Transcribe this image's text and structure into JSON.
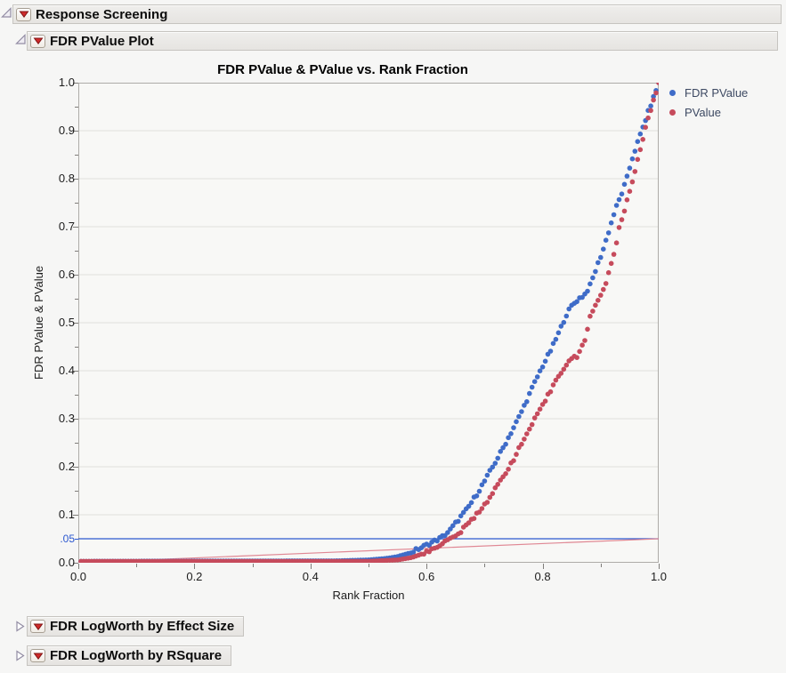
{
  "outline": {
    "root_panel": {
      "label": "Response Screening",
      "state": "open"
    },
    "plot_panel": {
      "label": "FDR PValue Plot",
      "state": "open"
    },
    "collapsed_panels": [
      {
        "label": "FDR LogWorth by Effect Size",
        "state": "closed"
      },
      {
        "label": "FDR LogWorth by RSquare",
        "state": "closed"
      }
    ]
  },
  "icons": {
    "disclosure_open": "open-outline-triangle",
    "disclosure_closed": "closed-outline-triangle",
    "red_triangle_menu": "red-triangle-menu"
  },
  "colors": {
    "plot_background": "#f8f8f6",
    "gridline": "#e0dfdc",
    "frame": "#aeaca8",
    "tick": "#7f7d7a",
    "blue_series": "#3f6cc8",
    "red_series": "#c64b5c",
    "blue_ref_line": "#2b57d0",
    "red_ref_line": "#e08894",
    "legend_text": "#3d4962"
  },
  "chart_data": {
    "type": "scatter",
    "title": "FDR PValue & PValue vs. Rank Fraction",
    "xlabel": "Rank Fraction",
    "ylabel": "FDR PValue & PValue",
    "xlim": [
      0,
      1
    ],
    "ylim": [
      0,
      1
    ],
    "grid": "horizontal-major-only",
    "x_axis": {
      "major_ticks": [
        0.0,
        0.2,
        0.4,
        0.6,
        0.8,
        1.0
      ],
      "major_tick_labels": [
        "0.0",
        "0.2",
        "0.4",
        "0.6",
        "0.8",
        "1.0"
      ],
      "minor_tick_step": 0.1
    },
    "y_axis": {
      "major_ticks": [
        0.0,
        0.1,
        0.2,
        0.3,
        0.4,
        0.5,
        0.6,
        0.7,
        0.8,
        0.9,
        1.0
      ],
      "major_tick_labels": [
        "0.0",
        "0.1",
        "0.2",
        "0.3",
        "0.4",
        "0.5",
        "0.6",
        "0.7",
        "0.8",
        "0.9",
        "1.0"
      ],
      "minor_tick_step": 0.05,
      "extra_label": {
        "text": ".05",
        "value": 0.05,
        "color": "#2b57d0"
      }
    },
    "reference_lines": [
      {
        "type": "horizontal",
        "y": 0.05,
        "color": "#2b57d0",
        "width": 1.3,
        "meaning": "0.05 significance level"
      },
      {
        "type": "segment",
        "from": [
          0,
          0
        ],
        "to": [
          1,
          0.05
        ],
        "color": "#e08894",
        "width": 1.2,
        "meaning": "FDR threshold line"
      }
    ],
    "legend": {
      "position": "right-top",
      "entries": [
        {
          "label": "FDR PValue",
          "color": "#3f6cc8"
        },
        {
          "label": "PValue",
          "color": "#c64b5c"
        }
      ]
    },
    "series": [
      {
        "name": "FDR PValue",
        "color": "#3f6cc8",
        "n_points": 220,
        "marker": "dot",
        "anchors": [
          [
            0,
            0.003
          ],
          [
            0.45,
            0.004
          ],
          [
            0.5,
            0.006
          ],
          [
            0.53,
            0.009
          ],
          [
            0.55,
            0.013
          ],
          [
            0.57,
            0.02
          ],
          [
            0.59,
            0.031
          ],
          [
            0.61,
            0.043
          ],
          [
            0.625,
            0.052
          ],
          [
            0.64,
            0.067
          ],
          [
            0.655,
            0.09
          ],
          [
            0.67,
            0.112
          ],
          [
            0.685,
            0.14
          ],
          [
            0.7,
            0.17
          ],
          [
            0.715,
            0.202
          ],
          [
            0.73,
            0.235
          ],
          [
            0.745,
            0.27
          ],
          [
            0.76,
            0.305
          ],
          [
            0.775,
            0.345
          ],
          [
            0.79,
            0.385
          ],
          [
            0.8,
            0.41
          ],
          [
            0.815,
            0.445
          ],
          [
            0.83,
            0.485
          ],
          [
            0.84,
            0.515
          ],
          [
            0.85,
            0.535
          ],
          [
            0.862,
            0.55
          ],
          [
            0.872,
            0.558
          ],
          [
            0.882,
            0.578
          ],
          [
            0.893,
            0.615
          ],
          [
            0.905,
            0.655
          ],
          [
            0.915,
            0.695
          ],
          [
            0.925,
            0.735
          ],
          [
            0.935,
            0.765
          ],
          [
            0.945,
            0.8
          ],
          [
            0.955,
            0.845
          ],
          [
            0.965,
            0.88
          ],
          [
            0.975,
            0.915
          ],
          [
            0.985,
            0.95
          ],
          [
            0.993,
            0.975
          ],
          [
            1,
            1
          ]
        ]
      },
      {
        "name": "PValue",
        "color": "#c64b5c",
        "n_points": 220,
        "marker": "dot",
        "anchors": [
          [
            0,
            0.002
          ],
          [
            0.5,
            0.003
          ],
          [
            0.55,
            0.006
          ],
          [
            0.575,
            0.011
          ],
          [
            0.6,
            0.022
          ],
          [
            0.62,
            0.036
          ],
          [
            0.645,
            0.052
          ],
          [
            0.66,
            0.066
          ],
          [
            0.675,
            0.086
          ],
          [
            0.69,
            0.106
          ],
          [
            0.705,
            0.13
          ],
          [
            0.72,
            0.156
          ],
          [
            0.735,
            0.186
          ],
          [
            0.75,
            0.216
          ],
          [
            0.765,
            0.25
          ],
          [
            0.78,
            0.285
          ],
          [
            0.795,
            0.316
          ],
          [
            0.81,
            0.35
          ],
          [
            0.825,
            0.386
          ],
          [
            0.84,
            0.412
          ],
          [
            0.85,
            0.425
          ],
          [
            0.862,
            0.432
          ],
          [
            0.872,
            0.462
          ],
          [
            0.882,
            0.512
          ],
          [
            0.892,
            0.542
          ],
          [
            0.9,
            0.556
          ],
          [
            0.91,
            0.586
          ],
          [
            0.918,
            0.62
          ],
          [
            0.925,
            0.656
          ],
          [
            0.932,
            0.696
          ],
          [
            0.94,
            0.73
          ],
          [
            0.948,
            0.766
          ],
          [
            0.956,
            0.8
          ],
          [
            0.964,
            0.842
          ],
          [
            0.972,
            0.882
          ],
          [
            0.98,
            0.916
          ],
          [
            0.987,
            0.946
          ],
          [
            0.994,
            0.972
          ],
          [
            1,
            1
          ]
        ]
      }
    ]
  }
}
